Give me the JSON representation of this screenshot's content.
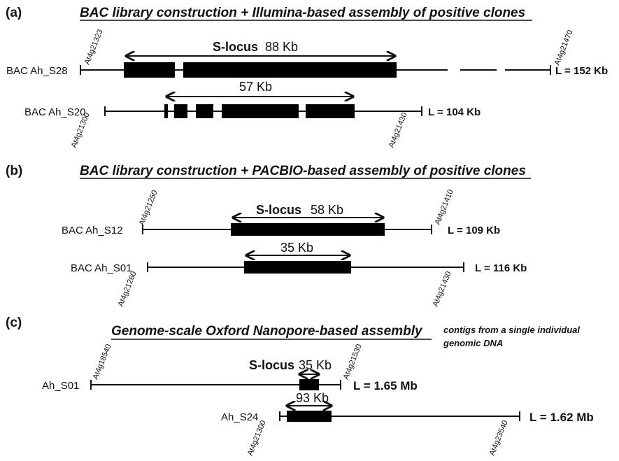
{
  "panels": {
    "a": {
      "label": "(a)",
      "title": "BAC library construction + Illumina-based assembly of positive clones",
      "clones": [
        {
          "name": "BAC Ah_S28",
          "length": "L = 152 Kb",
          "left_marker": "At4g21323",
          "right_marker": "At4g21470",
          "slocus": "S-locus",
          "size": "88 Kb"
        },
        {
          "name": "BAC Ah_S20",
          "length": "L = 104 Kb",
          "left_marker": "At4g21300",
          "right_marker": "At4g21430",
          "size": "57 Kb"
        }
      ]
    },
    "b": {
      "label": "(b)",
      "title": "BAC library construction + PACBIO-based assembly of positive clones",
      "clones": [
        {
          "name": "BAC Ah_S12",
          "length": "L = 109 Kb",
          "left_marker": "At4g21250",
          "right_marker": "At4g21410",
          "slocus": "S-locus",
          "size": "58 Kb"
        },
        {
          "name": "BAC Ah_S01",
          "length": "L = 116 Kb",
          "left_marker": "At4g21260",
          "right_marker": "At4g21430",
          "size": "35 Kb"
        }
      ]
    },
    "c": {
      "label": "(c)",
      "title": "Genome-scale Oxford Nanopore-based assembly",
      "note_line1": "contigs from a single individual",
      "note_line2": "genomic DNA",
      "clones": [
        {
          "name": "Ah_S01",
          "length": "L = 1.65 Mb",
          "left_marker": "At4g18540",
          "right_marker": "At4g21530",
          "slocus": "S-locus",
          "size": "35 Kb"
        },
        {
          "name": "Ah_S24",
          "length": "L = 1.62 Mb",
          "left_marker": "At4g21300",
          "right_marker": "At4g23540",
          "size": "93 Kb"
        }
      ]
    }
  }
}
